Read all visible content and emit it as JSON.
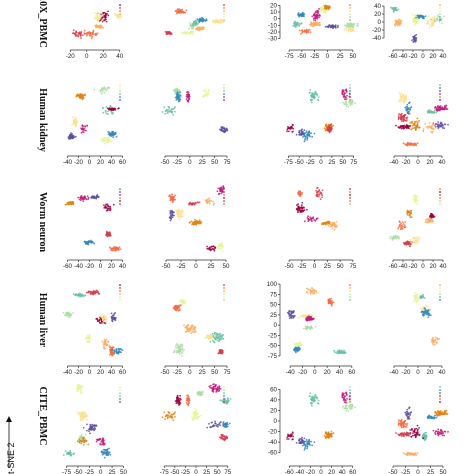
{
  "figure": {
    "side_label": "t-SNE 2",
    "row_labels": [
      "10X_PBMC",
      "Human kidney",
      "Worm neuron",
      "Human liver",
      "CITE_PBMC"
    ]
  },
  "palette": [
    "#9e0142",
    "#d53e4f",
    "#f46d43",
    "#fdae61",
    "#fee08b",
    "#e6f598",
    "#abdda4",
    "#66c2a5",
    "#3288bd",
    "#5e4fa2",
    "#c51b7d",
    "#e08214"
  ],
  "chart_data": [
    {
      "type": "scatter",
      "row": 0,
      "col": 0,
      "x_ticks": [
        -20,
        0,
        20,
        40
      ],
      "y_ticks": [],
      "xlim": [
        -30,
        50
      ]
    },
    {
      "type": "scatter",
      "row": 0,
      "col": 1,
      "x_ticks": [],
      "y_ticks": [],
      "xlim": [
        -80,
        60
      ]
    },
    {
      "type": "scatter",
      "row": 0,
      "col": 2,
      "x_ticks": [
        -75,
        -50,
        -25,
        0,
        25,
        50
      ],
      "y_ticks": [
        20,
        10,
        0,
        -10,
        -20,
        -30
      ],
      "xlim": [
        -85,
        60
      ],
      "ylim": [
        -35,
        25
      ]
    },
    {
      "type": "scatter",
      "row": 0,
      "col": 3,
      "x_ticks": [
        -60,
        -40,
        -20,
        0,
        20,
        40
      ],
      "y_ticks": [
        40,
        20,
        0,
        -20,
        -40
      ],
      "xlim": [
        -70,
        50
      ],
      "ylim": [
        -50,
        50
      ]
    },
    {
      "type": "scatter",
      "row": 1,
      "col": 0,
      "x_ticks": [
        -40,
        -20,
        0,
        20,
        40,
        60
      ],
      "y_ticks": [],
      "xlim": [
        -50,
        70
      ]
    },
    {
      "type": "scatter",
      "row": 1,
      "col": 1,
      "x_ticks": [
        -50,
        -25,
        0,
        25,
        50,
        75
      ],
      "y_ticks": [],
      "xlim": [
        -60,
        85
      ]
    },
    {
      "type": "scatter",
      "row": 1,
      "col": 2,
      "x_ticks": [
        -75,
        -50,
        -25,
        0,
        25,
        50,
        75
      ],
      "y_ticks": [],
      "xlim": [
        -85,
        85
      ]
    },
    {
      "type": "scatter",
      "row": 1,
      "col": 3,
      "x_ticks": [
        -40,
        -20,
        0,
        20,
        40
      ],
      "y_ticks": [],
      "xlim": [
        -50,
        50
      ]
    },
    {
      "type": "scatter",
      "row": 2,
      "col": 0,
      "x_ticks": [
        -60,
        -40,
        -20,
        0,
        20,
        40
      ],
      "y_ticks": [],
      "xlim": [
        -70,
        50
      ]
    },
    {
      "type": "scatter",
      "row": 2,
      "col": 1,
      "x_ticks": [
        -50,
        -25,
        0,
        25,
        50
      ],
      "y_ticks": [],
      "xlim": [
        -60,
        60
      ]
    },
    {
      "type": "scatter",
      "row": 2,
      "col": 2,
      "x_ticks": [
        -50,
        -25,
        0,
        25,
        50,
        75
      ],
      "y_ticks": [],
      "xlim": [
        -60,
        85
      ]
    },
    {
      "type": "scatter",
      "row": 2,
      "col": 3,
      "x_ticks": [
        -60,
        -40,
        -20,
        0,
        20,
        40
      ],
      "y_ticks": [],
      "xlim": [
        -70,
        50
      ]
    },
    {
      "type": "scatter",
      "row": 3,
      "col": 0,
      "x_ticks": [
        -40,
        -20,
        0,
        20,
        40,
        60
      ],
      "y_ticks": [],
      "xlim": [
        -50,
        70
      ]
    },
    {
      "type": "scatter",
      "row": 3,
      "col": 1,
      "x_ticks": [
        -50,
        -25,
        0,
        25,
        50,
        75
      ],
      "y_ticks": [],
      "xlim": [
        -60,
        85
      ]
    },
    {
      "type": "scatter",
      "row": 3,
      "col": 2,
      "x_ticks": [
        -40,
        -20,
        0,
        20,
        40,
        60
      ],
      "y_ticks": [
        100,
        75,
        50,
        25,
        0,
        -25,
        -50,
        -75
      ],
      "xlim": [
        -50,
        70
      ],
      "ylim": [
        -80,
        105
      ]
    },
    {
      "type": "scatter",
      "row": 3,
      "col": 3,
      "x_ticks": [
        -40,
        -20,
        0,
        20,
        40
      ],
      "y_ticks": [],
      "xlim": [
        -50,
        50
      ]
    },
    {
      "type": "scatter",
      "row": 4,
      "col": 0,
      "x_ticks": [
        -75,
        -50,
        -25,
        0,
        25,
        50
      ],
      "y_ticks": [],
      "xlim": [
        -85,
        60
      ]
    },
    {
      "type": "scatter",
      "row": 4,
      "col": 1,
      "x_ticks": [
        -75,
        -50,
        -25,
        0,
        25,
        50,
        75
      ],
      "y_ticks": [],
      "xlim": [
        -85,
        85
      ]
    },
    {
      "type": "scatter",
      "row": 4,
      "col": 2,
      "x_ticks": [
        -60,
        -40,
        -20,
        0,
        20,
        40,
        60
      ],
      "y_ticks": [
        60,
        40,
        20,
        0,
        -20,
        -40,
        -60
      ],
      "xlim": [
        -70,
        70
      ],
      "ylim": [
        -70,
        70
      ]
    },
    {
      "type": "scatter",
      "row": 4,
      "col": 3,
      "x_ticks": [
        -50,
        -25,
        0,
        25,
        50
      ],
      "y_ticks": [],
      "xlim": [
        -60,
        60
      ]
    }
  ]
}
